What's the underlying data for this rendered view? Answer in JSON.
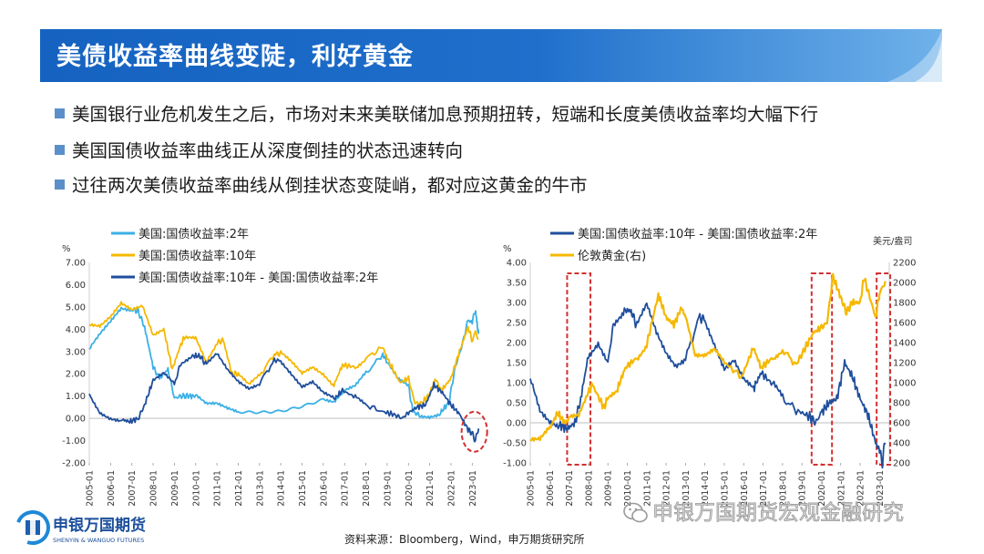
{
  "slide": {
    "title": "美债收益率曲线变陡，利好黄金",
    "bullets": [
      "美国银行业危机发生之后，市场对未来美联储加息预期扭转，短端和长度美债收益率均大幅下行",
      "美国国债收益率曲线正从深度倒挂的状态迅速转向",
      "过往两次美债收益率曲线从倒挂状态变陡峭，都对应这黄金的牛市"
    ],
    "source": "资料来源：Bloomberg，Wind，申万期货研究所",
    "logo": {
      "cn": "申银万国期货",
      "en": "SHENYIN & WANGUO FUTURES"
    },
    "watermark": "申银万国期货宏观金融研究",
    "colors": {
      "banner": "#1565c0",
      "banner_light": "#5aa0e0"
    }
  },
  "chart_data": [
    {
      "type": "line",
      "unit_left": "%",
      "ylim": [
        -2,
        7
      ],
      "yticks": [
        "7.00",
        "6.00",
        "5.00",
        "4.00",
        "3.00",
        "2.00",
        "1.00",
        "0.00",
        "-1.00",
        "-2.00"
      ],
      "xticks": [
        "2005-01",
        "2006-01",
        "2007-01",
        "2008-01",
        "2009-01",
        "2010-01",
        "2011-01",
        "2012-01",
        "2013-01",
        "2014-01",
        "2015-01",
        "2016-01",
        "2017-01",
        "2018-01",
        "2019-01",
        "2020-01",
        "2021-01",
        "2022-01",
        "2023-01"
      ],
      "xlim": [
        2005.0,
        2023.5
      ],
      "series": [
        {
          "name": "美国:国债收益率:2年",
          "color": "#3bb0e6",
          "points": [
            [
              2005.0,
              3.1
            ],
            [
              2005.5,
              3.8
            ],
            [
              2006.0,
              4.4
            ],
            [
              2006.5,
              5.0
            ],
            [
              2007.0,
              4.9
            ],
            [
              2007.3,
              4.8
            ],
            [
              2007.6,
              4.1
            ],
            [
              2008.0,
              2.3
            ],
            [
              2008.3,
              1.8
            ],
            [
              2008.7,
              2.2
            ],
            [
              2009.0,
              0.9
            ],
            [
              2009.3,
              1.0
            ],
            [
              2009.6,
              1.0
            ],
            [
              2010.0,
              1.0
            ],
            [
              2010.5,
              0.6
            ],
            [
              2011.0,
              0.6
            ],
            [
              2011.5,
              0.4
            ],
            [
              2012.0,
              0.25
            ],
            [
              2013.0,
              0.3
            ],
            [
              2014.0,
              0.4
            ],
            [
              2015.0,
              0.6
            ],
            [
              2016.0,
              0.85
            ],
            [
              2016.5,
              0.7
            ],
            [
              2017.0,
              1.2
            ],
            [
              2017.5,
              1.4
            ],
            [
              2018.0,
              2.0
            ],
            [
              2018.8,
              2.9
            ],
            [
              2019.0,
              2.5
            ],
            [
              2019.5,
              1.8
            ],
            [
              2020.0,
              1.5
            ],
            [
              2020.2,
              0.3
            ],
            [
              2020.5,
              0.15
            ],
            [
              2021.0,
              0.12
            ],
            [
              2021.5,
              0.25
            ],
            [
              2021.9,
              0.7
            ],
            [
              2022.2,
              2.3
            ],
            [
              2022.5,
              3.2
            ],
            [
              2022.8,
              4.4
            ],
            [
              2023.0,
              4.3
            ],
            [
              2023.15,
              4.9
            ],
            [
              2023.25,
              4.0
            ],
            [
              2023.3,
              3.9
            ]
          ]
        },
        {
          "name": "美国:国债收益率:10年",
          "color": "#f5b800",
          "points": [
            [
              2005.0,
              4.2
            ],
            [
              2005.5,
              4.1
            ],
            [
              2006.0,
              4.5
            ],
            [
              2006.5,
              5.1
            ],
            [
              2007.0,
              4.8
            ],
            [
              2007.5,
              5.0
            ],
            [
              2008.0,
              3.7
            ],
            [
              2008.5,
              4.0
            ],
            [
              2008.9,
              2.2
            ],
            [
              2009.3,
              3.3
            ],
            [
              2009.5,
              3.7
            ],
            [
              2010.0,
              3.7
            ],
            [
              2010.5,
              2.6
            ],
            [
              2011.0,
              3.4
            ],
            [
              2011.3,
              3.5
            ],
            [
              2011.7,
              2.0
            ],
            [
              2012.0,
              2.0
            ],
            [
              2012.5,
              1.5
            ],
            [
              2013.0,
              1.9
            ],
            [
              2013.7,
              2.9
            ],
            [
              2014.0,
              2.9
            ],
            [
              2014.5,
              2.5
            ],
            [
              2015.0,
              2.0
            ],
            [
              2015.5,
              2.3
            ],
            [
              2016.0,
              2.0
            ],
            [
              2016.5,
              1.5
            ],
            [
              2016.9,
              2.4
            ],
            [
              2017.5,
              2.3
            ],
            [
              2018.0,
              2.7
            ],
            [
              2018.8,
              3.2
            ],
            [
              2019.0,
              2.7
            ],
            [
              2019.6,
              1.6
            ],
            [
              2020.0,
              1.8
            ],
            [
              2020.3,
              0.7
            ],
            [
              2020.6,
              0.65
            ],
            [
              2021.0,
              1.1
            ],
            [
              2021.25,
              1.7
            ],
            [
              2021.6,
              1.3
            ],
            [
              2022.0,
              1.8
            ],
            [
              2022.4,
              3.0
            ],
            [
              2022.8,
              4.1
            ],
            [
              2023.0,
              3.5
            ],
            [
              2023.15,
              3.9
            ],
            [
              2023.3,
              3.5
            ]
          ]
        },
        {
          "name": "美国:国债收益率:10年 - 美国:国债收益率:2年",
          "color": "#1f4e9c",
          "points": [
            [
              2005.0,
              1.1
            ],
            [
              2005.5,
              0.3
            ],
            [
              2006.0,
              0.05
            ],
            [
              2006.5,
              -0.05
            ],
            [
              2006.9,
              -0.15
            ],
            [
              2007.3,
              0.0
            ],
            [
              2007.6,
              0.6
            ],
            [
              2008.0,
              1.7
            ],
            [
              2008.5,
              2.0
            ],
            [
              2009.0,
              1.5
            ],
            [
              2009.3,
              2.5
            ],
            [
              2009.8,
              2.8
            ],
            [
              2010.2,
              2.8
            ],
            [
              2010.5,
              2.4
            ],
            [
              2011.0,
              2.9
            ],
            [
              2011.5,
              2.2
            ],
            [
              2012.0,
              1.7
            ],
            [
              2012.5,
              1.4
            ],
            [
              2013.0,
              1.6
            ],
            [
              2013.7,
              2.6
            ],
            [
              2014.0,
              2.6
            ],
            [
              2014.5,
              2.0
            ],
            [
              2015.0,
              1.4
            ],
            [
              2015.5,
              1.6
            ],
            [
              2016.0,
              1.1
            ],
            [
              2016.5,
              0.85
            ],
            [
              2016.9,
              1.25
            ],
            [
              2017.5,
              0.95
            ],
            [
              2018.0,
              0.6
            ],
            [
              2018.8,
              0.3
            ],
            [
              2019.4,
              0.15
            ],
            [
              2019.7,
              0.0
            ],
            [
              2020.0,
              0.25
            ],
            [
              2020.4,
              0.5
            ],
            [
              2020.8,
              0.6
            ],
            [
              2021.2,
              1.5
            ],
            [
              2021.6,
              1.15
            ],
            [
              2022.0,
              0.6
            ],
            [
              2022.4,
              0.2
            ],
            [
              2022.8,
              -0.5
            ],
            [
              2023.0,
              -0.7
            ],
            [
              2023.15,
              -1.0
            ],
            [
              2023.3,
              -0.4
            ]
          ]
        }
      ],
      "legend_position": "top"
    },
    {
      "type": "line",
      "unit_left": "%",
      "unit_right": "美元/盎司",
      "ylim": [
        -1,
        4
      ],
      "ylim_right": [
        200,
        2200
      ],
      "yticks": [
        "4.00",
        "3.50",
        "3.00",
        "2.50",
        "2.00",
        "1.50",
        "1.00",
        "0.50",
        "0.00",
        "-0.50",
        "-1.00"
      ],
      "yticks_right": [
        "2200",
        "2000",
        "1800",
        "1600",
        "1400",
        "1200",
        "1000",
        "800",
        "600",
        "400",
        "200"
      ],
      "xticks": [
        "2005-01",
        "2006-01",
        "2007-01",
        "2008-01",
        "2009-01",
        "2010-01",
        "2011-01",
        "2012-01",
        "2013-01",
        "2014-01",
        "2015-01",
        "2016-01",
        "2017-01",
        "2018-01",
        "2019-01",
        "2020-01",
        "2021-01",
        "2022-01",
        "2023-01"
      ],
      "xlim": [
        2005.0,
        2023.5
      ],
      "series": [
        {
          "name": "美国:国债收益率:10年 - 美国:国债收益率:2年",
          "color": "#1f4e9c",
          "axis": "left",
          "points": [
            [
              2005.0,
              1.1
            ],
            [
              2005.5,
              0.3
            ],
            [
              2006.0,
              0.05
            ],
            [
              2006.5,
              -0.05
            ],
            [
              2006.9,
              -0.15
            ],
            [
              2007.3,
              0.0
            ],
            [
              2007.6,
              0.6
            ],
            [
              2008.0,
              1.7
            ],
            [
              2008.5,
              2.0
            ],
            [
              2009.0,
              1.5
            ],
            [
              2009.3,
              2.5
            ],
            [
              2009.8,
              2.8
            ],
            [
              2010.2,
              2.8
            ],
            [
              2010.5,
              2.4
            ],
            [
              2011.0,
              2.9
            ],
            [
              2011.5,
              2.2
            ],
            [
              2012.0,
              1.7
            ],
            [
              2012.5,
              1.4
            ],
            [
              2013.0,
              1.6
            ],
            [
              2013.7,
              2.6
            ],
            [
              2014.0,
              2.6
            ],
            [
              2014.5,
              2.0
            ],
            [
              2015.0,
              1.4
            ],
            [
              2015.5,
              1.6
            ],
            [
              2016.0,
              1.1
            ],
            [
              2016.5,
              0.85
            ],
            [
              2016.9,
              1.25
            ],
            [
              2017.5,
              0.95
            ],
            [
              2018.0,
              0.6
            ],
            [
              2018.8,
              0.3
            ],
            [
              2019.4,
              0.15
            ],
            [
              2019.7,
              0.0
            ],
            [
              2020.0,
              0.25
            ],
            [
              2020.4,
              0.5
            ],
            [
              2020.8,
              0.6
            ],
            [
              2021.2,
              1.5
            ],
            [
              2021.6,
              1.15
            ],
            [
              2022.0,
              0.6
            ],
            [
              2022.4,
              0.2
            ],
            [
              2022.8,
              -0.5
            ],
            [
              2023.0,
              -0.7
            ],
            [
              2023.15,
              -1.0
            ],
            [
              2023.3,
              -0.4
            ]
          ]
        },
        {
          "name": "伦敦黄金(右)",
          "color": "#f5b800",
          "axis": "right",
          "points": [
            [
              2005.0,
              430
            ],
            [
              2005.5,
              430
            ],
            [
              2006.0,
              540
            ],
            [
              2006.4,
              700
            ],
            [
              2006.8,
              600
            ],
            [
              2007.0,
              640
            ],
            [
              2007.5,
              660
            ],
            [
              2008.0,
              900
            ],
            [
              2008.2,
              980
            ],
            [
              2008.8,
              750
            ],
            [
              2009.0,
              860
            ],
            [
              2009.5,
              940
            ],
            [
              2009.9,
              1150
            ],
            [
              2010.5,
              1250
            ],
            [
              2011.0,
              1380
            ],
            [
              2011.6,
              1880
            ],
            [
              2012.0,
              1650
            ],
            [
              2012.4,
              1580
            ],
            [
              2012.8,
              1750
            ],
            [
              2013.0,
              1650
            ],
            [
              2013.5,
              1250
            ],
            [
              2014.0,
              1250
            ],
            [
              2014.5,
              1320
            ],
            [
              2015.0,
              1200
            ],
            [
              2015.9,
              1060
            ],
            [
              2016.5,
              1350
            ],
            [
              2016.9,
              1150
            ],
            [
              2017.5,
              1250
            ],
            [
              2018.0,
              1330
            ],
            [
              2018.7,
              1180
            ],
            [
              2019.0,
              1290
            ],
            [
              2019.6,
              1500
            ],
            [
              2020.0,
              1550
            ],
            [
              2020.3,
              1600
            ],
            [
              2020.6,
              2060
            ],
            [
              2021.0,
              1850
            ],
            [
              2021.3,
              1700
            ],
            [
              2021.6,
              1800
            ],
            [
              2022.0,
              1800
            ],
            [
              2022.2,
              2050
            ],
            [
              2022.8,
              1650
            ],
            [
              2023.0,
              1900
            ],
            [
              2023.3,
              2000
            ]
          ]
        }
      ],
      "highlight_boxes_x": [
        [
          2006.9,
          2008.1
        ],
        [
          2019.5,
          2020.55
        ],
        [
          2022.85,
          2023.55
        ]
      ],
      "legend_position": "top"
    }
  ]
}
